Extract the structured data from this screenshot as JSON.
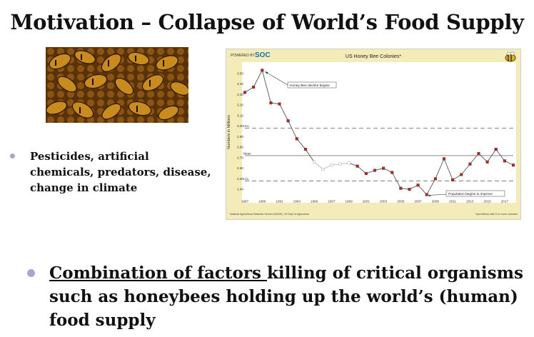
{
  "slide": {
    "title": "Motivation – Collapse of World’s Food Supply",
    "bullet_small": "Pesticides, artificial chemicals, predators, disease, change in climate",
    "bullet_big_underlined": "Combination of factors ",
    "bullet_big_rest": "killing of critical organisms such as honeybees holding up the world’s (human) food supply"
  },
  "chart_header": {
    "powered_by": "POWERED BY",
    "logo": "SOC"
  },
  "chart_data": {
    "type": "line",
    "title": "US Honey Bee Colonies*",
    "ylabel": "Numbers in Millions",
    "xlabel": "",
    "x": [
      1987,
      1988,
      1989,
      1990,
      1991,
      1992,
      1993,
      1994,
      1995,
      1996,
      1997,
      1998,
      1999,
      2000,
      2001,
      2002,
      2003,
      2004,
      2005,
      2006,
      2007,
      2008,
      2009,
      2010,
      2011,
      2012,
      2013,
      2014,
      2015,
      2016,
      2017,
      2018
    ],
    "values": [
      3.32,
      3.37,
      3.53,
      3.22,
      3.21,
      3.05,
      2.88,
      2.78,
      2.66,
      2.59,
      2.63,
      2.64,
      2.65,
      2.62,
      2.55,
      2.58,
      2.6,
      2.56,
      2.41,
      2.4,
      2.44,
      2.35,
      2.5,
      2.69,
      2.49,
      2.54,
      2.64,
      2.74,
      2.66,
      2.78,
      2.67,
      2.63
    ],
    "ylim": [
      2.32,
      3.58
    ],
    "yticks": [
      "3.50",
      "3.40",
      "3.30",
      "3.20",
      "3.10",
      "3.00",
      "2.90",
      "2.80",
      "2.70",
      "2.60",
      "2.50",
      "2.40"
    ],
    "xticks": [
      "1987",
      "1989",
      "1991",
      "1993",
      "1995",
      "1997",
      "1999",
      "2001",
      "2003",
      "2005",
      "2007",
      "2009",
      "2011",
      "2013",
      "2015",
      "2017"
    ],
    "ucl": 2.98,
    "mean": 2.72,
    "lcl": 2.48,
    "ucl_label": "UCL",
    "mean_label": "Mean",
    "lcl_label": "LCL",
    "annotations": [
      "Honey Bee decline begins",
      "Population begins to improve"
    ],
    "source": "National Agricultural Statistics Service (NASS), US Dept of Agriculture",
    "footnote": "*operations with 5 or more colonies",
    "colors": {
      "decline": "#b02a2a",
      "special": "#c8c8c8",
      "frame": "#f4ecb8"
    }
  }
}
